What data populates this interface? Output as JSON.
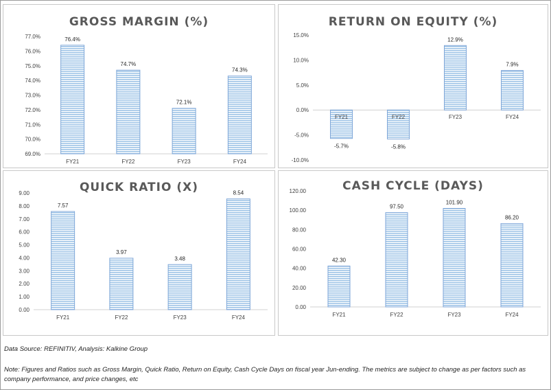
{
  "colors": {
    "bar_edge": "#7ea6d8",
    "bar_stripe": "#9dc3e6",
    "bar_fill": "#ffffff",
    "title": "#595959"
  },
  "chart_data": [
    {
      "type": "bar",
      "title": "GROSS MARGIN (%)",
      "categories": [
        "FY21",
        "FY22",
        "FY23",
        "FY24"
      ],
      "values": [
        76.4,
        74.7,
        72.1,
        74.3
      ],
      "data_labels": [
        "76.4%",
        "74.7%",
        "72.1%",
        "74.3%"
      ],
      "ylim": [
        69.0,
        77.0
      ],
      "yticks": [
        69.0,
        70.0,
        71.0,
        72.0,
        73.0,
        74.0,
        75.0,
        76.0,
        77.0
      ],
      "ytick_labels": [
        "69.0%",
        "70.0%",
        "71.0%",
        "72.0%",
        "73.0%",
        "74.0%",
        "75.0%",
        "76.0%",
        "77.0%"
      ],
      "xlabel": "",
      "ylabel": "",
      "grid": false
    },
    {
      "type": "bar",
      "title": "RETURN ON EQUITY (%)",
      "categories": [
        "FY21",
        "FY22",
        "FY23",
        "FY24"
      ],
      "values": [
        -5.7,
        -5.8,
        12.9,
        7.9
      ],
      "data_labels": [
        "-5.7%",
        "-5.8%",
        "12.9%",
        "7.9%"
      ],
      "ylim": [
        -10.0,
        15.0
      ],
      "yticks": [
        -10.0,
        -5.0,
        0.0,
        5.0,
        10.0,
        15.0
      ],
      "ytick_labels": [
        "-10.0%",
        "-5.0%",
        "0.0%",
        "5.0%",
        "10.0%",
        "15.0%"
      ],
      "xlabel": "",
      "ylabel": "",
      "grid": false
    },
    {
      "type": "bar",
      "title": "QUICK RATIO (X)",
      "categories": [
        "FY21",
        "FY22",
        "FY23",
        "FY24"
      ],
      "values": [
        7.57,
        3.97,
        3.48,
        8.54
      ],
      "data_labels": [
        "7.57",
        "3.97",
        "3.48",
        "8.54"
      ],
      "ylim": [
        0.0,
        9.0
      ],
      "yticks": [
        0,
        1,
        2,
        3,
        4,
        5,
        6,
        7,
        8,
        9
      ],
      "ytick_labels": [
        "0.00",
        "1.00",
        "2.00",
        "3.00",
        "4.00",
        "5.00",
        "6.00",
        "7.00",
        "8.00",
        "9.00"
      ],
      "xlabel": "",
      "ylabel": "",
      "grid": false
    },
    {
      "type": "bar",
      "title": "CASH CYCLE (DAYS)",
      "categories": [
        "FY21",
        "FY22",
        "FY23",
        "FY24"
      ],
      "values": [
        42.3,
        97.5,
        101.9,
        86.2
      ],
      "data_labels": [
        "42.30",
        "97.50",
        "101.90",
        "86.20"
      ],
      "ylim": [
        0.0,
        120.0
      ],
      "yticks": [
        0,
        20,
        40,
        60,
        80,
        100,
        120
      ],
      "ytick_labels": [
        "0.00",
        "20.00",
        "40.00",
        "60.00",
        "80.00",
        "100.00",
        "120.00"
      ],
      "xlabel": "",
      "ylabel": "",
      "grid": false
    }
  ],
  "footer": {
    "source": "Data Source: REFINITIV, Analysis: Kalkine Group",
    "note": "Note: Figures and Ratios such as Gross Margin, Quick Ratio, Return on Equity, Cash Cycle Days on fiscal year Jun-ending. The metrics are subject to change as per factors such as company performance, and price changes, etc"
  }
}
